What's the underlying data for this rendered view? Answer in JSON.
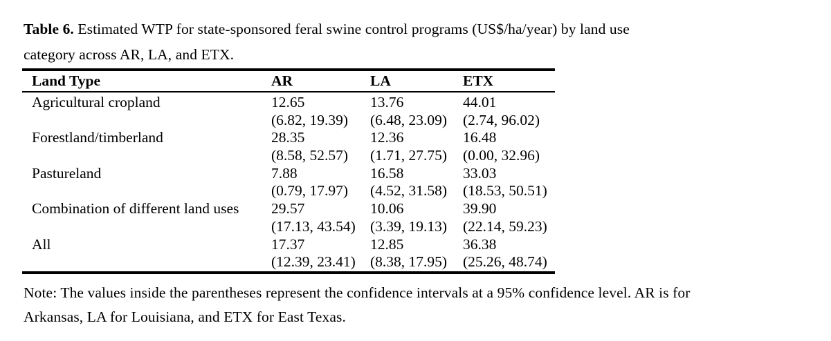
{
  "title": {
    "label": "Table 6.",
    "line1": " Estimated WTP for state-sponsored feral swine control programs (US$/ha/year) by land use",
    "line2": "category across AR, LA, and ETX."
  },
  "table": {
    "columns": [
      "Land Type",
      "AR",
      "LA",
      "ETX"
    ],
    "rows": [
      {
        "land_type": "Agricultural cropland",
        "ar": {
          "wtp": "12.65",
          "ci": "(6.82, 19.39)"
        },
        "la": {
          "wtp": "13.76",
          "ci": "(6.48, 23.09)"
        },
        "etx": {
          "wtp": "44.01",
          "ci": "(2.74, 96.02)"
        }
      },
      {
        "land_type": "Forestland/timberland",
        "ar": {
          "wtp": "28.35",
          "ci": "(8.58, 52.57)"
        },
        "la": {
          "wtp": "12.36",
          "ci": "(1.71, 27.75)"
        },
        "etx": {
          "wtp": "16.48",
          "ci": "(0.00, 32.96)"
        }
      },
      {
        "land_type": "Pastureland",
        "ar": {
          "wtp": "7.88",
          "ci": "(0.79, 17.97)"
        },
        "la": {
          "wtp": "16.58",
          "ci": "(4.52, 31.58)"
        },
        "etx": {
          "wtp": "33.03",
          "ci": "(18.53, 50.51)"
        }
      },
      {
        "land_type": "Combination of different land uses",
        "ar": {
          "wtp": "29.57",
          "ci": "(17.13, 43.54)"
        },
        "la": {
          "wtp": "10.06",
          "ci": "(3.39, 19.13)"
        },
        "etx": {
          "wtp": "39.90",
          "ci": "(22.14, 59.23)"
        }
      },
      {
        "land_type": "All",
        "ar": {
          "wtp": "17.37",
          "ci": "(12.39, 23.41)"
        },
        "la": {
          "wtp": "12.85",
          "ci": "(8.38, 17.95)"
        },
        "etx": {
          "wtp": "36.38",
          "ci": "(25.26, 48.74)"
        }
      }
    ]
  },
  "note": {
    "line1": "Note: The values inside the parentheses represent the confidence intervals at a 95% confidence level. AR is for",
    "line2": "Arkansas, LA for Louisiana, and ETX for East Texas."
  }
}
